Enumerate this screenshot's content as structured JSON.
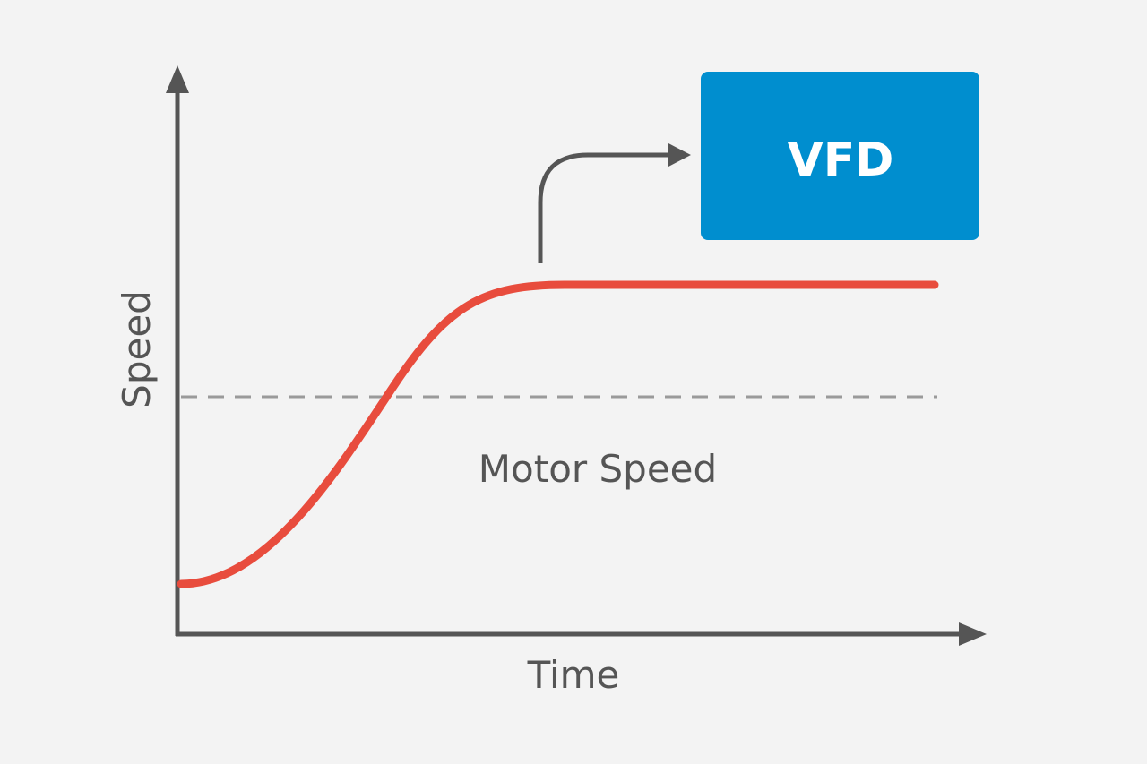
{
  "diagram": {
    "y_axis_label": "Speed",
    "x_axis_label": "Time",
    "curve_label": "Motor Speed",
    "box_label": "VFD"
  }
}
